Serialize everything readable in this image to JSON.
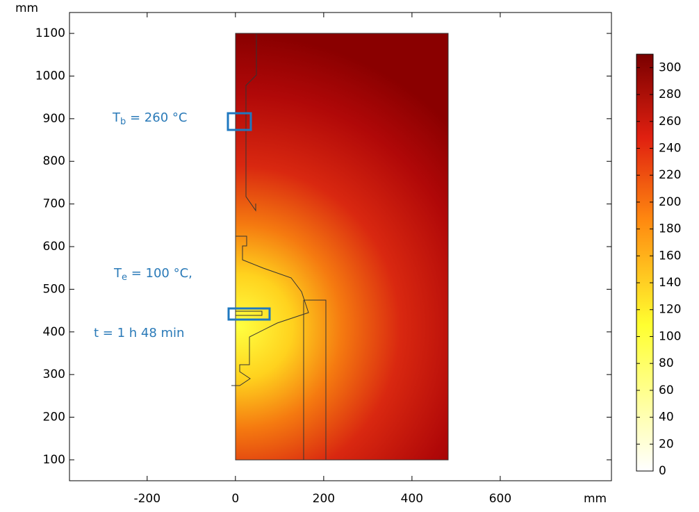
{
  "chart_data": {
    "type": "contour",
    "x_unit": "mm",
    "y_unit": "mm",
    "xlim": [
      -376,
      852
    ],
    "ylim": [
      51,
      1149
    ],
    "xticks": [
      -200,
      0,
      200,
      400,
      600
    ],
    "yticks": [
      100,
      200,
      300,
      400,
      500,
      600,
      700,
      800,
      900,
      1000,
      1100
    ],
    "colorbar": {
      "lim": [
        0,
        310
      ],
      "ticks": [
        0,
        20,
        40,
        60,
        80,
        100,
        120,
        140,
        160,
        180,
        200,
        220,
        240,
        260,
        280,
        300
      ]
    },
    "annotations": [
      {
        "text": "T",
        "sub": "b",
        "rest": " = 260 °C"
      },
      {
        "text": "T",
        "sub": "e",
        "rest": " = 100 °C,"
      },
      {
        "text": "t = 1 h 48 min"
      }
    ]
  }
}
